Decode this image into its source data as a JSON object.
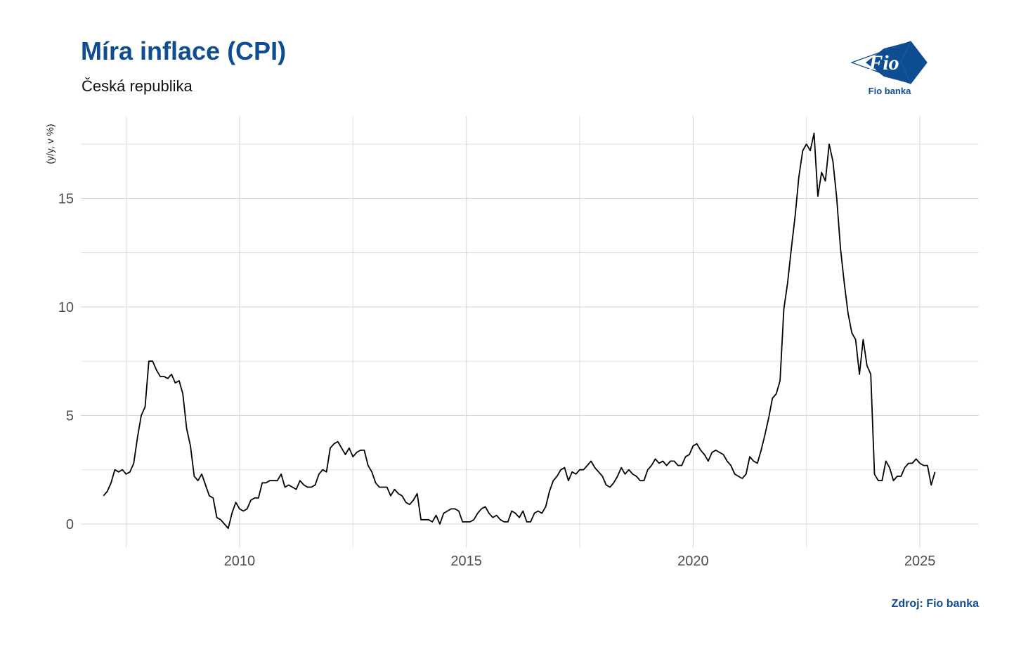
{
  "header": {
    "title": "Míra inflace (CPI)",
    "subtitle": "Česká republika"
  },
  "logo": {
    "icon": "fio-banka-logo",
    "mark_text": "Fio",
    "caption": "Fio banka"
  },
  "footer": {
    "source": "Zdroj: Fio banka"
  },
  "colors": {
    "title": "#0e4d92",
    "line": "#000000",
    "grid": "#d9d9d9"
  },
  "chart_data": {
    "type": "line",
    "title": "Míra inflace (CPI)",
    "subtitle": "Česká republika",
    "ylabel": "(y/y, v %)",
    "xlabel": "",
    "xlim": [
      2006.5,
      2026.3
    ],
    "ylim": [
      -1.1,
      18.8
    ],
    "x_ticks": [
      2010,
      2015,
      2020,
      2025
    ],
    "x_tick_labels": [
      "2010",
      "2015",
      "2020",
      "2025"
    ],
    "y_ticks": [
      0,
      5,
      10,
      15
    ],
    "y_tick_labels": [
      "0",
      "5",
      "10",
      "15"
    ],
    "grid": true,
    "legend": "none",
    "series": [
      {
        "values": [
          [
            2007.0,
            1.3
          ],
          [
            2007.083,
            1.5
          ],
          [
            2007.167,
            1.9
          ],
          [
            2007.25,
            2.5
          ],
          [
            2007.333,
            2.4
          ],
          [
            2007.417,
            2.5
          ],
          [
            2007.5,
            2.3
          ],
          [
            2007.583,
            2.4
          ],
          [
            2007.667,
            2.8
          ],
          [
            2007.75,
            4.0
          ],
          [
            2007.833,
            5.0
          ],
          [
            2007.917,
            5.4
          ],
          [
            2008.0,
            7.5
          ],
          [
            2008.083,
            7.5
          ],
          [
            2008.167,
            7.1
          ],
          [
            2008.25,
            6.8
          ],
          [
            2008.333,
            6.8
          ],
          [
            2008.417,
            6.7
          ],
          [
            2008.5,
            6.9
          ],
          [
            2008.583,
            6.5
          ],
          [
            2008.667,
            6.6
          ],
          [
            2008.75,
            6.0
          ],
          [
            2008.833,
            4.4
          ],
          [
            2008.917,
            3.6
          ],
          [
            2009.0,
            2.2
          ],
          [
            2009.083,
            2.0
          ],
          [
            2009.167,
            2.3
          ],
          [
            2009.25,
            1.8
          ],
          [
            2009.333,
            1.3
          ],
          [
            2009.417,
            1.2
          ],
          [
            2009.5,
            0.3
          ],
          [
            2009.583,
            0.2
          ],
          [
            2009.667,
            0.0
          ],
          [
            2009.75,
            -0.2
          ],
          [
            2009.833,
            0.5
          ],
          [
            2009.917,
            1.0
          ],
          [
            2010.0,
            0.7
          ],
          [
            2010.083,
            0.6
          ],
          [
            2010.167,
            0.7
          ],
          [
            2010.25,
            1.1
          ],
          [
            2010.333,
            1.2
          ],
          [
            2010.417,
            1.2
          ],
          [
            2010.5,
            1.9
          ],
          [
            2010.583,
            1.9
          ],
          [
            2010.667,
            2.0
          ],
          [
            2010.75,
            2.0
          ],
          [
            2010.833,
            2.0
          ],
          [
            2010.917,
            2.3
          ],
          [
            2011.0,
            1.7
          ],
          [
            2011.083,
            1.8
          ],
          [
            2011.167,
            1.7
          ],
          [
            2011.25,
            1.6
          ],
          [
            2011.333,
            2.0
          ],
          [
            2011.417,
            1.8
          ],
          [
            2011.5,
            1.7
          ],
          [
            2011.583,
            1.7
          ],
          [
            2011.667,
            1.8
          ],
          [
            2011.75,
            2.3
          ],
          [
            2011.833,
            2.5
          ],
          [
            2011.917,
            2.4
          ],
          [
            2012.0,
            3.5
          ],
          [
            2012.083,
            3.7
          ],
          [
            2012.167,
            3.8
          ],
          [
            2012.25,
            3.5
          ],
          [
            2012.333,
            3.2
          ],
          [
            2012.417,
            3.5
          ],
          [
            2012.5,
            3.1
          ],
          [
            2012.583,
            3.3
          ],
          [
            2012.667,
            3.4
          ],
          [
            2012.75,
            3.4
          ],
          [
            2012.833,
            2.7
          ],
          [
            2012.917,
            2.4
          ],
          [
            2013.0,
            1.9
          ],
          [
            2013.083,
            1.7
          ],
          [
            2013.167,
            1.7
          ],
          [
            2013.25,
            1.7
          ],
          [
            2013.333,
            1.3
          ],
          [
            2013.417,
            1.6
          ],
          [
            2013.5,
            1.4
          ],
          [
            2013.583,
            1.3
          ],
          [
            2013.667,
            1.0
          ],
          [
            2013.75,
            0.9
          ],
          [
            2013.833,
            1.1
          ],
          [
            2013.917,
            1.4
          ],
          [
            2014.0,
            0.2
          ],
          [
            2014.083,
            0.2
          ],
          [
            2014.167,
            0.2
          ],
          [
            2014.25,
            0.1
          ],
          [
            2014.333,
            0.4
          ],
          [
            2014.417,
            0.0
          ],
          [
            2014.5,
            0.5
          ],
          [
            2014.583,
            0.6
          ],
          [
            2014.667,
            0.7
          ],
          [
            2014.75,
            0.7
          ],
          [
            2014.833,
            0.6
          ],
          [
            2014.917,
            0.1
          ],
          [
            2015.0,
            0.1
          ],
          [
            2015.083,
            0.1
          ],
          [
            2015.167,
            0.2
          ],
          [
            2015.25,
            0.5
          ],
          [
            2015.333,
            0.7
          ],
          [
            2015.417,
            0.8
          ],
          [
            2015.5,
            0.5
          ],
          [
            2015.583,
            0.3
          ],
          [
            2015.667,
            0.4
          ],
          [
            2015.75,
            0.2
          ],
          [
            2015.833,
            0.1
          ],
          [
            2015.917,
            0.1
          ],
          [
            2016.0,
            0.6
          ],
          [
            2016.083,
            0.5
          ],
          [
            2016.167,
            0.3
          ],
          [
            2016.25,
            0.6
          ],
          [
            2016.333,
            0.1
          ],
          [
            2016.417,
            0.1
          ],
          [
            2016.5,
            0.5
          ],
          [
            2016.583,
            0.6
          ],
          [
            2016.667,
            0.5
          ],
          [
            2016.75,
            0.8
          ],
          [
            2016.833,
            1.5
          ],
          [
            2016.917,
            2.0
          ],
          [
            2017.0,
            2.2
          ],
          [
            2017.083,
            2.5
          ],
          [
            2017.167,
            2.6
          ],
          [
            2017.25,
            2.0
          ],
          [
            2017.333,
            2.4
          ],
          [
            2017.417,
            2.3
          ],
          [
            2017.5,
            2.5
          ],
          [
            2017.583,
            2.5
          ],
          [
            2017.667,
            2.7
          ],
          [
            2017.75,
            2.9
          ],
          [
            2017.833,
            2.6
          ],
          [
            2017.917,
            2.4
          ],
          [
            2018.0,
            2.2
          ],
          [
            2018.083,
            1.8
          ],
          [
            2018.167,
            1.7
          ],
          [
            2018.25,
            1.9
          ],
          [
            2018.333,
            2.2
          ],
          [
            2018.417,
            2.6
          ],
          [
            2018.5,
            2.3
          ],
          [
            2018.583,
            2.5
          ],
          [
            2018.667,
            2.3
          ],
          [
            2018.75,
            2.2
          ],
          [
            2018.833,
            2.0
          ],
          [
            2018.917,
            2.0
          ],
          [
            2019.0,
            2.5
          ],
          [
            2019.083,
            2.7
          ],
          [
            2019.167,
            3.0
          ],
          [
            2019.25,
            2.8
          ],
          [
            2019.333,
            2.9
          ],
          [
            2019.417,
            2.7
          ],
          [
            2019.5,
            2.9
          ],
          [
            2019.583,
            2.9
          ],
          [
            2019.667,
            2.7
          ],
          [
            2019.75,
            2.7
          ],
          [
            2019.833,
            3.1
          ],
          [
            2019.917,
            3.2
          ],
          [
            2020.0,
            3.6
          ],
          [
            2020.083,
            3.7
          ],
          [
            2020.167,
            3.4
          ],
          [
            2020.25,
            3.2
          ],
          [
            2020.333,
            2.9
          ],
          [
            2020.417,
            3.3
          ],
          [
            2020.5,
            3.4
          ],
          [
            2020.583,
            3.3
          ],
          [
            2020.667,
            3.2
          ],
          [
            2020.75,
            2.9
          ],
          [
            2020.833,
            2.7
          ],
          [
            2020.917,
            2.3
          ],
          [
            2021.0,
            2.2
          ],
          [
            2021.083,
            2.1
          ],
          [
            2021.167,
            2.3
          ],
          [
            2021.25,
            3.1
          ],
          [
            2021.333,
            2.9
          ],
          [
            2021.417,
            2.8
          ],
          [
            2021.5,
            3.4
          ],
          [
            2021.583,
            4.1
          ],
          [
            2021.667,
            4.9
          ],
          [
            2021.75,
            5.8
          ],
          [
            2021.833,
            6.0
          ],
          [
            2021.917,
            6.6
          ],
          [
            2022.0,
            9.9
          ],
          [
            2022.083,
            11.1
          ],
          [
            2022.167,
            12.7
          ],
          [
            2022.25,
            14.2
          ],
          [
            2022.333,
            16.0
          ],
          [
            2022.417,
            17.2
          ],
          [
            2022.5,
            17.5
          ],
          [
            2022.583,
            17.2
          ],
          [
            2022.667,
            18.0
          ],
          [
            2022.75,
            15.1
          ],
          [
            2022.833,
            16.2
          ],
          [
            2022.917,
            15.8
          ],
          [
            2023.0,
            17.5
          ],
          [
            2023.083,
            16.7
          ],
          [
            2023.167,
            15.0
          ],
          [
            2023.25,
            12.7
          ],
          [
            2023.333,
            11.1
          ],
          [
            2023.417,
            9.7
          ],
          [
            2023.5,
            8.8
          ],
          [
            2023.583,
            8.5
          ],
          [
            2023.667,
            6.9
          ],
          [
            2023.75,
            8.5
          ],
          [
            2023.833,
            7.3
          ],
          [
            2023.917,
            6.9
          ],
          [
            2024.0,
            2.3
          ],
          [
            2024.083,
            2.0
          ],
          [
            2024.167,
            2.0
          ],
          [
            2024.25,
            2.9
          ],
          [
            2024.333,
            2.6
          ],
          [
            2024.417,
            2.0
          ],
          [
            2024.5,
            2.2
          ],
          [
            2024.583,
            2.2
          ],
          [
            2024.667,
            2.6
          ],
          [
            2024.75,
            2.8
          ],
          [
            2024.833,
            2.8
          ],
          [
            2024.917,
            3.0
          ],
          [
            2025.0,
            2.8
          ],
          [
            2025.083,
            2.7
          ],
          [
            2025.167,
            2.7
          ],
          [
            2025.25,
            1.8
          ],
          [
            2025.333,
            2.4
          ]
        ]
      }
    ]
  }
}
